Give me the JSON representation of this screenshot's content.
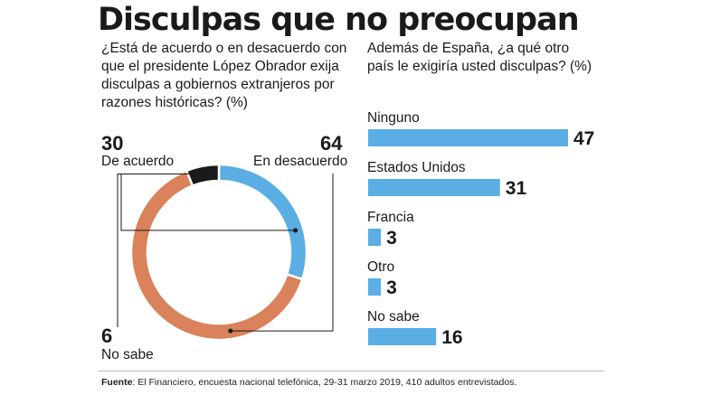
{
  "title": "Disculpas que no preocupan",
  "left_question": [
    "¿Está de acuerdo o en desacuerdo con",
    "que el presidente López Obrador exija",
    "disculpas a gobiernos extranjeros por",
    "razones históricas? (%)"
  ],
  "right_question": [
    "Además de España, ¿a qué otro",
    "país le exigiría usted disculpas? (%)"
  ],
  "colors": {
    "acuerdo": "#5aaee3",
    "desacuerdo": "#d9825b",
    "nosabe": "#1a1a1a",
    "bar": "#5aaee3"
  },
  "chart_data": [
    {
      "type": "pie",
      "donut": true,
      "categories": [
        "De acuerdo",
        "En desacuerdo",
        "No sabe"
      ],
      "values": [
        30,
        64,
        6
      ],
      "labels": {
        "acuerdo_value": "30",
        "acuerdo_label": "De acuerdo",
        "desacuerdo_value": "64",
        "desacuerdo_label": "En desacuerdo",
        "nosabe_value": "6",
        "nosabe_label": "No sabe"
      }
    },
    {
      "type": "bar",
      "orientation": "horizontal",
      "categories": [
        "Ninguno",
        "Estados Unidos",
        "Francia",
        "Otro",
        "No sabe"
      ],
      "values": [
        47,
        31,
        3,
        3,
        16
      ]
    }
  ],
  "source": {
    "label": "Fuente",
    "text": ": El Financiero, encuesta nacional telefónica, 29-31 marzo 2019, 410 adultos entrevistados."
  }
}
